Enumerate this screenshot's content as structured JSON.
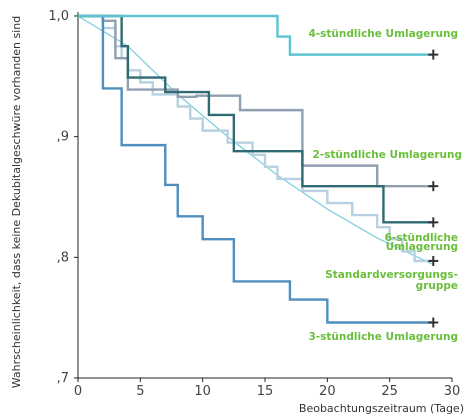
{
  "chart_data": {
    "type": "line",
    "step": true,
    "xlabel": "Beobachtungszeitraum (Tage)",
    "ylabel": "Wahrscheinlichkeit, dass keine Dekubitalgeschwüre vorhanden sind",
    "xlim": [
      0,
      30
    ],
    "ylim": [
      0.7,
      1.0
    ],
    "xticks": [
      0,
      5,
      10,
      15,
      20,
      25,
      30
    ],
    "xtick_labels": [
      "0",
      "5",
      "10",
      "15",
      "20",
      "25",
      "30"
    ],
    "yticks": [
      0.7,
      0.8,
      0.9,
      1.0
    ],
    "ytick_labels": [
      ",7",
      ",8",
      ",9",
      "1,0"
    ],
    "grid": false,
    "label_color": "#6abf3a",
    "marker_color": "#333333",
    "series": [
      {
        "name": "4-stündliche Umlagerung",
        "color": "#5cc4cf",
        "points": [
          [
            0,
            1.0
          ],
          [
            16,
            1.0
          ],
          [
            16,
            0.983
          ],
          [
            17,
            0.983
          ],
          [
            17,
            0.968
          ],
          [
            28.5,
            0.968
          ]
        ],
        "end_x": 28.5
      },
      {
        "name": "2-stündliche Umlagerung",
        "color": "#8fa1b0",
        "points": [
          [
            0,
            1.0
          ],
          [
            2,
            1.0
          ],
          [
            2,
            0.996
          ],
          [
            3,
            0.996
          ],
          [
            3,
            0.965
          ],
          [
            4,
            0.965
          ],
          [
            4,
            0.939
          ],
          [
            8,
            0.939
          ],
          [
            8,
            0.933
          ],
          [
            9.5,
            0.933
          ],
          [
            9.5,
            0.934
          ],
          [
            13,
            0.934
          ],
          [
            13,
            0.922
          ],
          [
            18,
            0.922
          ],
          [
            18,
            0.876
          ],
          [
            24,
            0.876
          ],
          [
            24,
            0.859
          ],
          [
            28.5,
            0.859
          ]
        ],
        "end_x": 28.5
      },
      {
        "name": "6-stündliche Umlagerung",
        "color": "#2e6b73",
        "points": [
          [
            0,
            1.0
          ],
          [
            3.5,
            1.0
          ],
          [
            3.5,
            0.975
          ],
          [
            4,
            0.975
          ],
          [
            4,
            0.949
          ],
          [
            7,
            0.949
          ],
          [
            7,
            0.937
          ],
          [
            10.5,
            0.937
          ],
          [
            10.5,
            0.918
          ],
          [
            12.5,
            0.918
          ],
          [
            12.5,
            0.888
          ],
          [
            18,
            0.888
          ],
          [
            18,
            0.859
          ],
          [
            24.5,
            0.859
          ],
          [
            24.5,
            0.829
          ],
          [
            28.5,
            0.829
          ]
        ],
        "end_x": 28.5
      },
      {
        "name": "Standardversorgungs-gruppe",
        "color": "#b8d0df",
        "points": [
          [
            0,
            1.0
          ],
          [
            2,
            1.0
          ],
          [
            2,
            0.99
          ],
          [
            3,
            0.99
          ],
          [
            3,
            0.975
          ],
          [
            3.5,
            0.975
          ],
          [
            3.5,
            0.965
          ],
          [
            4,
            0.965
          ],
          [
            4,
            0.955
          ],
          [
            5,
            0.955
          ],
          [
            5,
            0.945
          ],
          [
            6,
            0.945
          ],
          [
            6,
            0.935
          ],
          [
            8,
            0.935
          ],
          [
            8,
            0.925
          ],
          [
            9,
            0.925
          ],
          [
            9,
            0.915
          ],
          [
            10,
            0.915
          ],
          [
            10,
            0.905
          ],
          [
            12,
            0.905
          ],
          [
            12,
            0.895
          ],
          [
            14,
            0.895
          ],
          [
            14,
            0.885
          ],
          [
            15,
            0.885
          ],
          [
            15,
            0.875
          ],
          [
            16,
            0.875
          ],
          [
            16,
            0.865
          ],
          [
            18,
            0.865
          ],
          [
            18,
            0.855
          ],
          [
            20,
            0.855
          ],
          [
            20,
            0.845
          ],
          [
            22,
            0.845
          ],
          [
            22,
            0.835
          ],
          [
            24,
            0.835
          ],
          [
            24,
            0.825
          ],
          [
            25,
            0.825
          ],
          [
            25,
            0.815
          ],
          [
            26,
            0.815
          ],
          [
            26,
            0.805
          ],
          [
            27,
            0.805
          ],
          [
            27,
            0.797
          ],
          [
            28.5,
            0.797
          ]
        ],
        "end_x": 28.5
      },
      {
        "name": "3-stündliche Umlagerung",
        "color": "#4f8fbf",
        "points": [
          [
            0,
            1.0
          ],
          [
            2,
            1.0
          ],
          [
            2,
            0.94
          ],
          [
            3.5,
            0.94
          ],
          [
            3.5,
            0.893
          ],
          [
            7,
            0.893
          ],
          [
            7,
            0.86
          ],
          [
            8,
            0.86
          ],
          [
            8,
            0.834
          ],
          [
            10,
            0.834
          ],
          [
            10,
            0.815
          ],
          [
            12.5,
            0.815
          ],
          [
            12.5,
            0.78
          ],
          [
            17,
            0.78
          ],
          [
            17,
            0.765
          ],
          [
            20,
            0.765
          ],
          [
            20,
            0.746
          ],
          [
            28.5,
            0.746
          ]
        ],
        "end_x": 28.5
      }
    ],
    "trend": {
      "color": "#7fd0dd",
      "points": [
        [
          0,
          1.0
        ],
        [
          4,
          0.975
        ],
        [
          8,
          0.935
        ],
        [
          12,
          0.9
        ],
        [
          16,
          0.868
        ],
        [
          20,
          0.84
        ],
        [
          24,
          0.816
        ],
        [
          28.5,
          0.794
        ]
      ]
    }
  }
}
